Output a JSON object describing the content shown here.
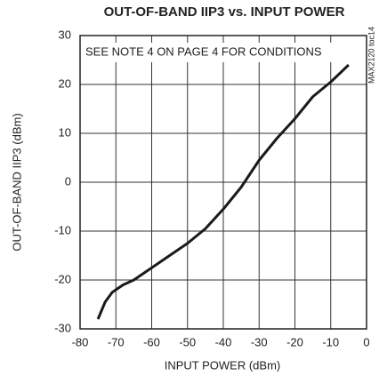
{
  "chart_data": {
    "type": "line",
    "title": "OUT-OF-BAND IIP3 vs. INPUT POWER",
    "xlabel": "INPUT POWER (dBm)",
    "ylabel": "OUT-OF-BAND IIP3 (dBm)",
    "annotation": "SEE NOTE 4 ON PAGE 4 FOR CONDITIONS",
    "side_note": "MAX2120 toc14",
    "x": [
      -75,
      -73,
      -71,
      -68,
      -65,
      -60,
      -55,
      -50,
      -45,
      -40,
      -35,
      -30,
      -25,
      -20,
      -15,
      -10,
      -5
    ],
    "series": [
      {
        "name": "IIP3",
        "color": "#1a1a1a",
        "values": [
          -28,
          -24.5,
          -22.5,
          -21,
          -20,
          -17.5,
          -15,
          -12.5,
          -9.5,
          -5.5,
          -1,
          4.5,
          9,
          13,
          17.5,
          20.5,
          24
        ]
      }
    ],
    "xlim": [
      -80,
      0
    ],
    "xticks": [
      -80,
      -70,
      -60,
      -50,
      -40,
      -30,
      -20,
      -10,
      0
    ],
    "ylim": [
      -30,
      30
    ],
    "yticks": [
      -30,
      -20,
      -10,
      0,
      10,
      20,
      30
    ],
    "grid": true
  }
}
